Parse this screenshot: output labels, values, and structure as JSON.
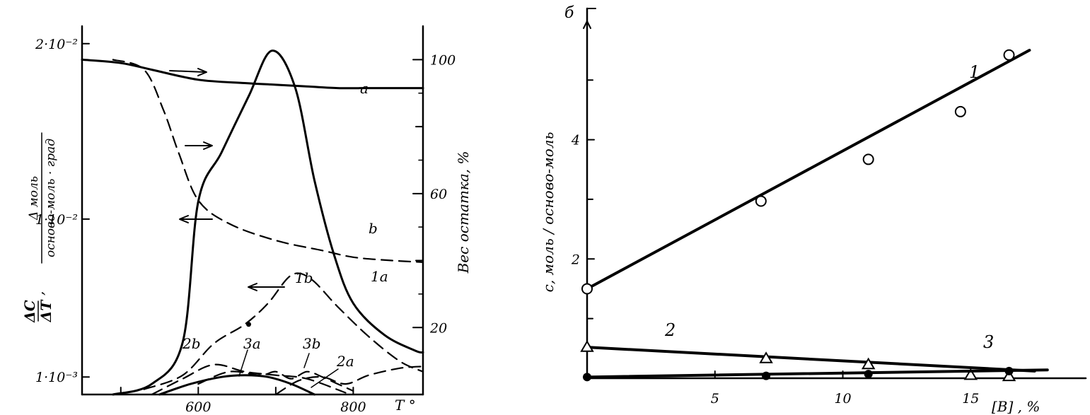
{
  "chart_data": [
    {
      "type": "line",
      "panel": "a",
      "xlabel": "T °",
      "x_ticks": [
        "600",
        "800"
      ],
      "ylabel_left_numerator": "ΔC",
      "ylabel_left_denominator": "ΔT",
      "ylabel_left_unit_numerator": "Δ моль",
      "ylabel_left_unit_denominator": "осново-моль · град",
      "y_left_ticks": [
        "2·10⁻²",
        "1·10⁻²",
        "1·10⁻³"
      ],
      "ylabel_right": "Вес остатка, %",
      "y_right_ticks": [
        "100",
        "60",
        "20"
      ],
      "xlim": [
        450,
        890
      ],
      "y_left_lim": [
        0,
        0.021
      ],
      "y_right_lim": [
        0,
        110
      ],
      "series": [
        {
          "name": "a",
          "axis": "right",
          "style": "solid",
          "x": [
            450,
            500,
            540,
            600,
            660,
            700,
            740,
            780,
            820,
            860,
            890
          ],
          "y": [
            100,
            99,
            97,
            94,
            93,
            92.5,
            92,
            91.5,
            91.5,
            91.5,
            91.5
          ]
        },
        {
          "name": "b",
          "axis": "right",
          "style": "dashed",
          "x": [
            490,
            530,
            555,
            575,
            600,
            640,
            700,
            760,
            800,
            850,
            890
          ],
          "y": [
            100,
            97,
            85,
            72,
            58,
            51,
            46,
            43,
            41,
            40,
            39.5
          ]
        },
        {
          "name": "1a",
          "axis": "left",
          "style": "solid",
          "x": [
            490,
            540,
            580,
            600,
            630,
            665,
            695,
            725,
            750,
            775,
            800,
            840,
            880,
            890
          ],
          "y": [
            0.0,
            0.0006,
            0.003,
            0.011,
            0.0138,
            0.017,
            0.0196,
            0.0175,
            0.0122,
            0.008,
            0.0052,
            0.0034,
            0.0025,
            0.0024
          ]
        },
        {
          "name": "1b",
          "axis": "left",
          "style": "dashed",
          "x": [
            530,
            580,
            620,
            660,
            690,
            720,
            745,
            780,
            820,
            860,
            890
          ],
          "y": [
            0.0003,
            0.0011,
            0.0029,
            0.004,
            0.0052,
            0.0068,
            0.0066,
            0.005,
            0.0033,
            0.0019,
            0.0013
          ]
        },
        {
          "name": "2a",
          "axis": "left",
          "style": "dashed",
          "x": [
            700,
            730,
            760,
            790,
            820,
            860,
            890
          ],
          "y": [
            0.0,
            0.0008,
            0.001,
            0.0006,
            0.0011,
            0.0015,
            0.0016
          ]
        },
        {
          "name": "2b",
          "axis": "left",
          "style": "dashed",
          "x": [
            540,
            580,
            620,
            660,
            700,
            740,
            790
          ],
          "y": [
            0.0,
            0.0009,
            0.0017,
            0.0013,
            0.0011,
            0.0009,
            0.0001
          ]
        },
        {
          "name": "3a",
          "axis": "left",
          "style": "solid",
          "x": [
            550,
            590,
            630,
            660,
            690,
            720,
            750
          ],
          "y": [
            0.0,
            0.0006,
            0.001,
            0.0011,
            0.001,
            0.0006,
            0.0
          ]
        },
        {
          "name": "3b",
          "axis": "left",
          "style": "dashed",
          "x": [
            600,
            640,
            680,
            700,
            720,
            740,
            760,
            780,
            800
          ],
          "y": [
            0.0006,
            0.0013,
            0.0011,
            0.0013,
            0.0009,
            0.0013,
            0.001,
            0.0006,
            0.0002
          ]
        }
      ]
    },
    {
      "type": "scatter",
      "panel": "b",
      "ylabel": "с, моль / осново-моль",
      "xlabel": "[B] , %",
      "x_ticks": [
        "5",
        "10",
        "15"
      ],
      "y_ticks": [
        "2",
        "4"
      ],
      "xlim": [
        0,
        19.5
      ],
      "ylim": [
        0,
        6.2
      ],
      "series": [
        {
          "name": "1",
          "marker": "open-circle",
          "x": [
            0,
            6.8,
            11,
            14.6,
            16.5
          ],
          "y": [
            1.5,
            2.97,
            3.67,
            4.47,
            5.42
          ],
          "fit": [
            [
              0,
              1.5
            ],
            [
              17.3,
              5.5
            ]
          ]
        },
        {
          "name": "2",
          "marker": "open-triangle",
          "x": [
            0,
            7,
            11,
            15,
            16.5
          ],
          "y": [
            0.52,
            0.33,
            0.23,
            0.05,
            0.03
          ],
          "fit": [
            [
              0,
              0.52
            ],
            [
              17.5,
              0.12
            ]
          ]
        },
        {
          "name": "3",
          "marker": "filled-circle",
          "x": [
            0,
            7,
            11,
            16.5
          ],
          "y": [
            0.02,
            0.04,
            0.07,
            0.12
          ],
          "fit": [
            [
              0,
              0.02
            ],
            [
              18,
              0.14
            ]
          ]
        }
      ]
    }
  ]
}
